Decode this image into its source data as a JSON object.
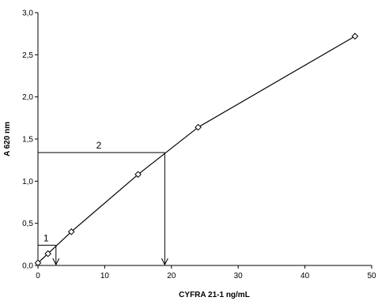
{
  "chart_data": {
    "type": "line",
    "title": "",
    "xlabel": "CYFRA 21-1 ng/mL",
    "ylabel": "A 620 nm",
    "xlim": [
      0,
      50
    ],
    "ylim": [
      0,
      3.0
    ],
    "x_ticks": [
      "0",
      "10",
      "20",
      "30",
      "40",
      "50"
    ],
    "y_ticks": [
      "0,0",
      "0,5",
      "1,0",
      "1,5",
      "2,0",
      "2,5",
      "3,0"
    ],
    "grid": false,
    "legend": "none",
    "marker": "diamond",
    "series": [
      {
        "x": [
          0,
          1.5,
          5,
          15,
          24,
          47.5
        ],
        "y": [
          0.03,
          0.14,
          0.4,
          1.08,
          1.64,
          2.72
        ]
      }
    ],
    "annotations": [
      {
        "label": "1",
        "x": 2.7,
        "y": 0.24
      },
      {
        "label": "2",
        "x": 19,
        "y": 1.34
      }
    ]
  }
}
